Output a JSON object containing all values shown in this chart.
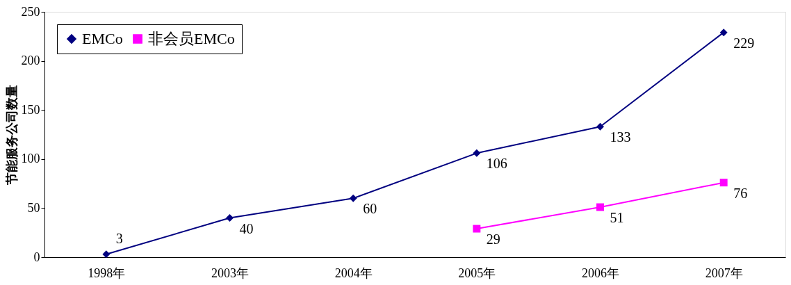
{
  "chart_data": {
    "type": "line",
    "ylabel": "节能服务公司数量",
    "categories": [
      "1998年",
      "2003年",
      "2004年",
      "2005年",
      "2006年",
      "2007年"
    ],
    "series": [
      {
        "name": "EMCo",
        "color": "#000080",
        "marker": "diamond",
        "values": [
          3,
          40,
          60,
          106,
          133,
          229
        ]
      },
      {
        "name": "非会员EMCo",
        "color": "#ff00ff",
        "marker": "square",
        "values": [
          null,
          null,
          null,
          29,
          51,
          76
        ]
      }
    ],
    "ylim": [
      0,
      250
    ],
    "yticks": [
      0,
      50,
      100,
      150,
      200,
      250
    ],
    "grid": false,
    "legend": "top left",
    "data_labels": true
  }
}
